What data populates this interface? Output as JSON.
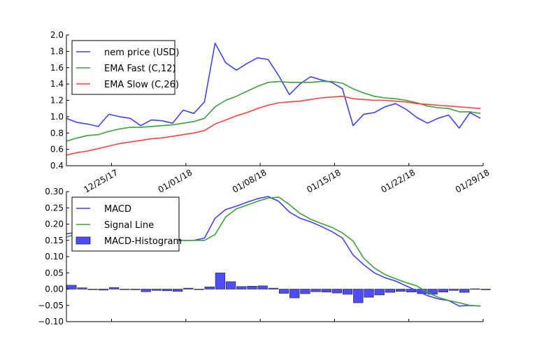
{
  "chart_data": [
    {
      "type": "line",
      "xticks": {
        "values": [
          4.25,
          11.25,
          18.25,
          25.25,
          32.25,
          39.25
        ],
        "labels": [
          "12/25/17",
          "01/01/18",
          "01/08/18",
          "01/15/18",
          "01/22/18",
          "01/29/18"
        ]
      },
      "xlim": [
        0,
        39.25
      ],
      "ylim": [
        0.4,
        2.0
      ],
      "yticks": [
        0.4,
        0.6,
        0.8,
        1.0,
        1.2,
        1.4,
        1.6,
        1.8,
        2.0
      ],
      "ytick_labels": [
        "0.4",
        "0.6",
        "0.8",
        "1.0",
        "1.2",
        "1.4",
        "1.6",
        "1.8",
        "2.0"
      ],
      "legend": "upper-left",
      "series": [
        {
          "name": "nem price (USD)",
          "color": "#4040ff",
          "values": [
            0.98,
            0.93,
            0.91,
            0.88,
            1.03,
            1.0,
            0.98,
            0.89,
            0.96,
            0.95,
            0.92,
            1.08,
            1.04,
            1.18,
            1.9,
            1.66,
            1.57,
            1.65,
            1.72,
            1.7,
            1.5,
            1.27,
            1.4,
            1.49,
            1.45,
            1.42,
            1.34,
            0.89,
            1.03,
            1.05,
            1.12,
            1.16,
            1.09,
            0.99,
            0.92,
            0.98,
            1.02,
            0.86,
            1.05,
            0.98
          ]
        },
        {
          "name": "EMA Fast (C,12)",
          "color": "#3ca03c",
          "values": [
            0.7,
            0.74,
            0.77,
            0.78,
            0.82,
            0.85,
            0.87,
            0.87,
            0.88,
            0.89,
            0.9,
            0.92,
            0.94,
            0.98,
            1.12,
            1.2,
            1.25,
            1.31,
            1.37,
            1.42,
            1.43,
            1.42,
            1.42,
            1.42,
            1.43,
            1.43,
            1.41,
            1.34,
            1.29,
            1.25,
            1.23,
            1.22,
            1.2,
            1.17,
            1.13,
            1.11,
            1.1,
            1.06,
            1.06,
            1.04
          ]
        },
        {
          "name": "EMA Slow (C,26)",
          "color": "#ff4040",
          "values": [
            0.53,
            0.56,
            0.58,
            0.61,
            0.64,
            0.67,
            0.69,
            0.71,
            0.73,
            0.74,
            0.76,
            0.78,
            0.8,
            0.83,
            0.91,
            0.96,
            1.01,
            1.05,
            1.1,
            1.14,
            1.17,
            1.18,
            1.19,
            1.21,
            1.23,
            1.24,
            1.25,
            1.22,
            1.21,
            1.2,
            1.2,
            1.19,
            1.18,
            1.16,
            1.15,
            1.14,
            1.13,
            1.12,
            1.11,
            1.1
          ]
        }
      ]
    },
    {
      "type": "line",
      "xlim": [
        0,
        39.25
      ],
      "ylim": [
        -0.1,
        0.3
      ],
      "yticks": [
        -0.1,
        -0.05,
        0.0,
        0.05,
        0.1,
        0.15,
        0.2,
        0.25,
        0.3
      ],
      "ytick_labels": [
        "−0.10",
        "−0.05",
        "0.00",
        "0.05",
        "0.10",
        "0.15",
        "0.20",
        "0.25",
        "0.30"
      ],
      "legend": "upper-left",
      "series": [
        {
          "name": "MACD",
          "color": "#4040ff",
          "values": [
            0.17,
            0.175,
            0.175,
            0.17,
            0.17,
            0.17,
            0.165,
            0.16,
            0.16,
            0.155,
            0.148,
            0.15,
            0.15,
            0.157,
            0.218,
            0.245,
            0.255,
            0.267,
            0.278,
            0.285,
            0.27,
            0.237,
            0.218,
            0.207,
            0.193,
            0.177,
            0.157,
            0.105,
            0.075,
            0.05,
            0.035,
            0.025,
            0.01,
            -0.005,
            -0.02,
            -0.03,
            -0.035,
            -0.052,
            -0.05,
            -0.052
          ]
        },
        {
          "name": "Signal Line",
          "color": "#3ca03c",
          "values": [
            0.16,
            0.17,
            0.175,
            0.175,
            0.168,
            0.168,
            0.168,
            0.165,
            0.162,
            0.16,
            0.155,
            0.15,
            0.15,
            0.15,
            0.168,
            0.222,
            0.247,
            0.258,
            0.27,
            0.28,
            0.283,
            0.26,
            0.233,
            0.215,
            0.202,
            0.19,
            0.173,
            0.148,
            0.095,
            0.065,
            0.045,
            0.032,
            0.02,
            0.01,
            -0.01,
            -0.025,
            -0.035,
            -0.042,
            -0.05,
            -0.052
          ]
        }
      ],
      "histogram": {
        "name": "MACD-Histogram",
        "color": "#4d4dff",
        "values": [
          0.012,
          0.004,
          0,
          -0.003,
          0.005,
          0,
          -0.002,
          -0.008,
          -0.004,
          -0.005,
          -0.007,
          0.003,
          -0.001,
          0.007,
          0.05,
          0.023,
          0.008,
          0.009,
          0.01,
          0.003,
          -0.013,
          -0.027,
          -0.014,
          -0.008,
          -0.009,
          -0.012,
          -0.016,
          -0.042,
          -0.025,
          -0.018,
          -0.01,
          -0.007,
          -0.009,
          -0.014,
          -0.016,
          -0.009,
          -0.004,
          -0.01,
          0.001,
          -0.002
        ]
      }
    }
  ]
}
